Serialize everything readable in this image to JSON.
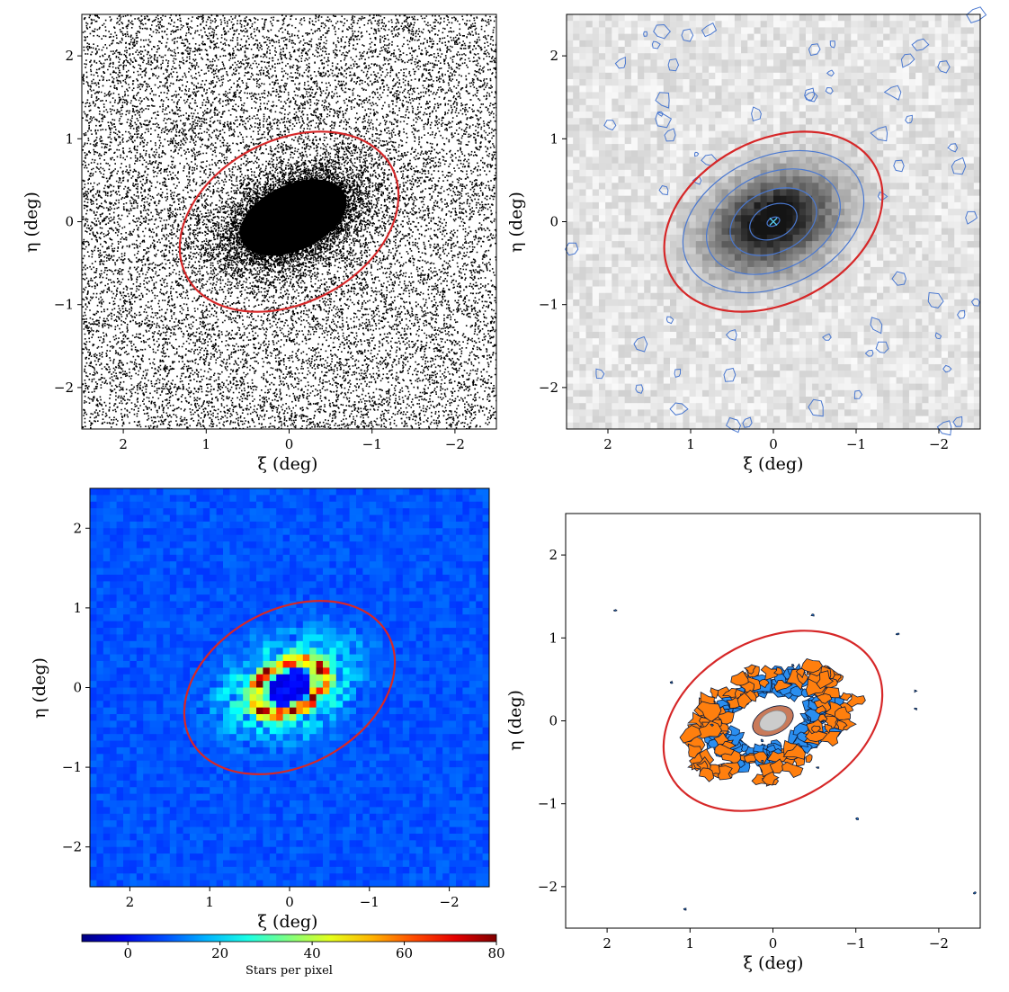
{
  "chart_data": [
    {
      "type": "heatmap",
      "panel": "top-left",
      "description_style": "binary black/white star density map",
      "xlabel": "ξ (deg)",
      "ylabel": "η (deg)",
      "xlim": [
        2.5,
        -2.5
      ],
      "ylim": [
        -2.5,
        2.5
      ],
      "xticks": [
        2,
        1,
        0,
        -1,
        -2
      ],
      "yticks": [
        2,
        1,
        0,
        -1,
        -2
      ],
      "xticklabels": [
        "2",
        "1",
        "0",
        "−1",
        "−2"
      ],
      "yticklabels": [
        "2",
        "1",
        "0",
        "−1",
        "−2"
      ],
      "ellipse": {
        "center": [
          0,
          0
        ],
        "semi_major": 1.4,
        "semi_minor": 0.98,
        "angle_deg": -28,
        "color": "#d62728"
      },
      "core": {
        "center": [
          -0.05,
          0.05
        ],
        "semi_major": 0.95,
        "semi_minor": 0.55,
        "angle_deg": -25
      }
    },
    {
      "type": "heatmap",
      "panel": "top-right",
      "description_style": "greyscale binned density with blue isodensity contours",
      "xlabel": "ξ (deg)",
      "ylabel": "η (deg)",
      "xlim": [
        2.5,
        -2.5
      ],
      "ylim": [
        -2.5,
        2.5
      ],
      "xticks": [
        2,
        1,
        0,
        -1,
        -2
      ],
      "yticks": [
        2,
        1,
        0,
        -1,
        -2
      ],
      "xticklabels": [
        "2",
        "1",
        "0",
        "−1",
        "−2"
      ],
      "yticklabels": [
        "2",
        "1",
        "0",
        "−1",
        "−2"
      ],
      "ellipse": {
        "center": [
          0,
          0
        ],
        "semi_major": 1.4,
        "semi_minor": 0.98,
        "angle_deg": -28,
        "color": "#d62728"
      },
      "contour_color": "#4a78d0",
      "contour_levels_semi_axes": [
        [
          0.08,
          0.05
        ],
        [
          0.3,
          0.2
        ],
        [
          0.55,
          0.37
        ],
        [
          0.85,
          0.58
        ],
        [
          1.15,
          0.78
        ]
      ],
      "center_marker": {
        "xy": [
          0,
          0
        ],
        "symbol": "×",
        "color": "#55ccee"
      }
    },
    {
      "type": "heatmap",
      "panel": "bottom-left",
      "description_style": "jet colormap residual star counts",
      "xlabel": "ξ (deg)",
      "ylabel": "η (deg)",
      "xlim": [
        2.5,
        -2.5
      ],
      "ylim": [
        -2.5,
        2.5
      ],
      "xticks": [
        2,
        1,
        0,
        -1,
        -2
      ],
      "yticks": [
        2,
        1,
        0,
        -1,
        -2
      ],
      "xticklabels": [
        "2",
        "1",
        "0",
        "−1",
        "−2"
      ],
      "yticklabels": [
        "2",
        "1",
        "0",
        "−1",
        "−2"
      ],
      "ellipse": {
        "center": [
          0,
          0
        ],
        "semi_major": 1.4,
        "semi_minor": 0.98,
        "angle_deg": -28,
        "color": "#d62728"
      },
      "colorbar": {
        "label": "Stars per pixel",
        "range": [
          -10,
          80
        ],
        "ticks": [
          0,
          20,
          40,
          60,
          80
        ],
        "ticklabels": [
          "0",
          "20",
          "40",
          "60",
          "80"
        ],
        "colormap": "jet"
      },
      "ring": {
        "center": [
          0,
          0
        ],
        "semi_major": 0.45,
        "semi_minor": 0.3,
        "angle_deg": -25,
        "peak_value": 70
      }
    },
    {
      "type": "heatmap",
      "panel": "bottom-right",
      "description_style": "filled contour regions (orange, blue, grey core)",
      "xlabel": "ξ (deg)",
      "ylabel": "η (deg)",
      "xlim": [
        2.5,
        -2.5
      ],
      "ylim": [
        -2.5,
        2.5
      ],
      "xticks": [
        2,
        1,
        0,
        -1,
        -2
      ],
      "yticks": [
        2,
        1,
        0,
        -1,
        -2
      ],
      "xticklabels": [
        "2",
        "1",
        "0",
        "−1",
        "−2"
      ],
      "yticklabels": [
        "2",
        "1",
        "0",
        "−1",
        "−2"
      ],
      "ellipse": {
        "center": [
          0,
          0
        ],
        "semi_major": 1.4,
        "semi_minor": 0.98,
        "angle_deg": -28,
        "color": "#d62728"
      },
      "regions": [
        {
          "name": "orange",
          "color": "#ff7f0e"
        },
        {
          "name": "blue",
          "color": "#2a8ef0"
        },
        {
          "name": "core",
          "color": "#cccccc"
        }
      ]
    }
  ]
}
